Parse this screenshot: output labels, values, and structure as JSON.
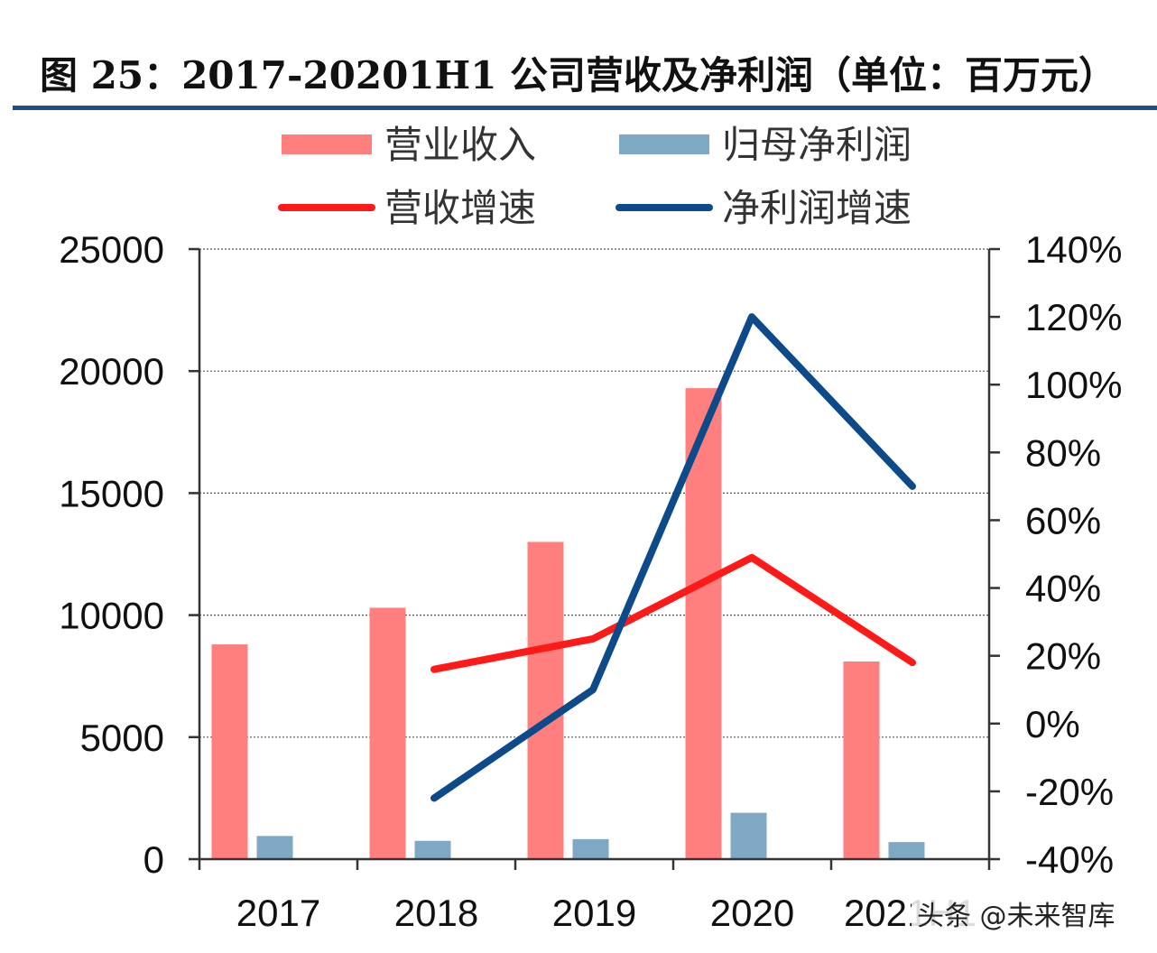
{
  "title": "图 25：2017-20201H1 公司营收及净利润（单位：百万元）",
  "watermark": "头条 @未来智库",
  "colors": {
    "revenue_bar": "#ff7f7f",
    "profit_bar": "#7fa8c4",
    "revenue_growth_line": "#ff1a1a",
    "profit_growth_line": "#0c4a8a",
    "title_rule": "#1f4e8c"
  },
  "chart_data": {
    "type": "bar",
    "title": "图 25：2017-20201H1 公司营收及净利润（单位：百万元）",
    "categories": [
      "2017",
      "2018",
      "2019",
      "2020",
      "2021H1"
    ],
    "y_left": {
      "min": 0,
      "max": 25000,
      "ticks": [
        0,
        5000,
        10000,
        15000,
        20000,
        25000
      ]
    },
    "y_right": {
      "min": -40,
      "max": 140,
      "ticks": [
        -40,
        -20,
        0,
        20,
        40,
        60,
        80,
        100,
        120,
        140
      ],
      "tick_labels": [
        "-40%",
        "-20%",
        "0%",
        "20%",
        "40%",
        "60%",
        "80%",
        "100%",
        "120%",
        "140%"
      ]
    },
    "grid": true,
    "legend_position": "top",
    "series": [
      {
        "name": "营业收入",
        "kind": "bar",
        "axis": "left",
        "values": [
          8800,
          10300,
          13000,
          19300,
          8100
        ]
      },
      {
        "name": "归母净利润",
        "kind": "bar",
        "axis": "left",
        "values": [
          950,
          750,
          820,
          1900,
          700
        ]
      },
      {
        "name": "营收增速",
        "kind": "line",
        "axis": "right",
        "values": [
          null,
          16,
          25,
          49,
          18
        ]
      },
      {
        "name": "净利润增速",
        "kind": "line",
        "axis": "right",
        "values": [
          null,
          -22,
          10,
          120,
          70
        ]
      }
    ]
  }
}
